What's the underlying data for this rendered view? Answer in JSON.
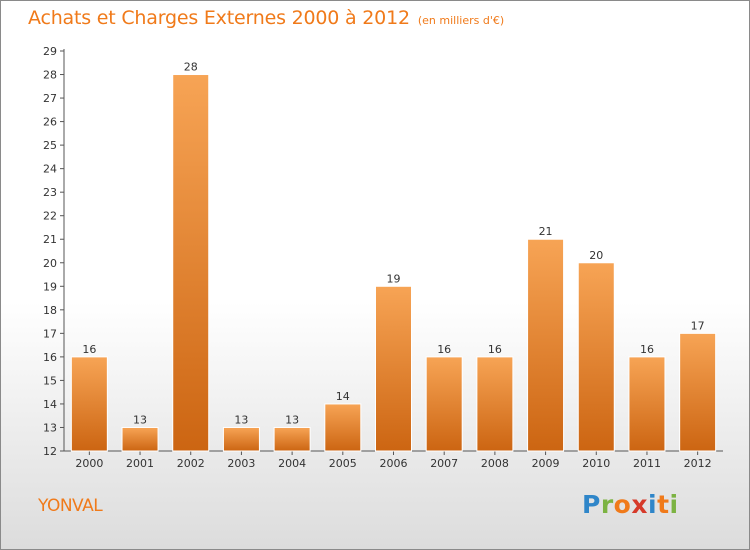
{
  "title": "Achats et Charges Externes 2000 à 2012",
  "unit": "(en milliers d'€)",
  "commune": "YONVAL",
  "logo": {
    "letters": [
      "P",
      "r",
      "o",
      "x",
      "i",
      "t",
      "i"
    ],
    "colors": [
      "#2f86c9",
      "#7cb342",
      "#f07a1a",
      "#d63a2a",
      "#2f86c9",
      "#f07a1a",
      "#7cb342"
    ]
  },
  "colors": {
    "accent": "#f07a1a",
    "bar_light": "#f7a455",
    "bar_dark": "#cc6512",
    "bar_border": "#ffffff"
  },
  "chart_data": {
    "type": "bar",
    "title": "Achats et Charges Externes 2000 à 2012",
    "subtitle": "(en milliers d'€)",
    "categories": [
      "2000",
      "2001",
      "2002",
      "2003",
      "2004",
      "2005",
      "2006",
      "2007",
      "2008",
      "2009",
      "2010",
      "2011",
      "2012"
    ],
    "values": [
      16,
      13,
      28,
      13,
      13,
      14,
      19,
      16,
      16,
      21,
      20,
      16,
      17
    ],
    "ylim": [
      12,
      29
    ],
    "yticks": [
      12,
      13,
      14,
      15,
      16,
      17,
      18,
      19,
      20,
      21,
      22,
      23,
      24,
      25,
      26,
      27,
      28,
      29
    ],
    "grid": false,
    "legend": "none"
  }
}
